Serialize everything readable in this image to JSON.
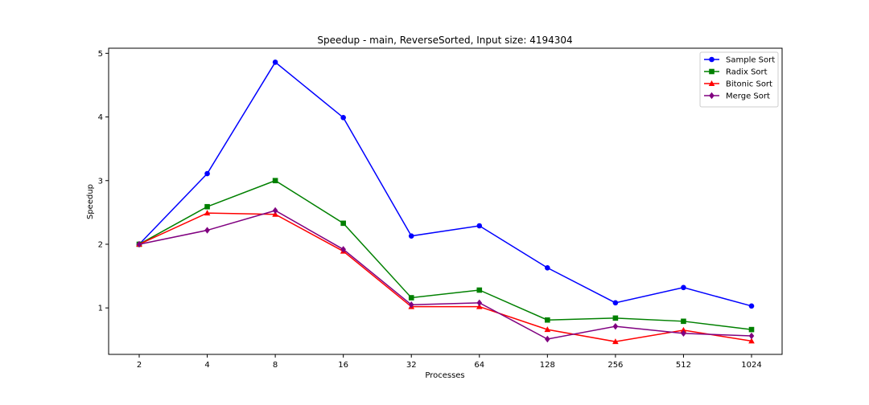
{
  "chart_data": {
    "type": "line",
    "title": "Speedup - main, ReverseSorted, Input size: 4194304",
    "xlabel": "Processes",
    "ylabel": "Speedup",
    "categories": [
      "2",
      "4",
      "8",
      "16",
      "32",
      "64",
      "128",
      "256",
      "512",
      "1024"
    ],
    "ylim": [
      0.27,
      5.08
    ],
    "yticks": [
      1,
      2,
      3,
      4,
      5
    ],
    "grid": false,
    "legend_position": "top-right",
    "series": [
      {
        "name": "Sample Sort",
        "color": "#0000ff",
        "marker": "circle",
        "values": [
          2.0,
          3.11,
          4.86,
          3.99,
          2.13,
          2.29,
          1.63,
          1.08,
          1.32,
          1.03
        ]
      },
      {
        "name": "Radix Sort",
        "color": "#008000",
        "marker": "square",
        "values": [
          2.0,
          2.59,
          3.0,
          2.33,
          1.16,
          1.28,
          0.81,
          0.84,
          0.79,
          0.66
        ]
      },
      {
        "name": "Bitonic Sort",
        "color": "#ff0000",
        "marker": "triangle",
        "values": [
          2.0,
          2.49,
          2.47,
          1.89,
          1.02,
          1.02,
          0.66,
          0.47,
          0.65,
          0.48
        ]
      },
      {
        "name": "Merge Sort",
        "color": "#800080",
        "marker": "diamond",
        "values": [
          2.0,
          2.22,
          2.53,
          1.92,
          1.05,
          1.08,
          0.51,
          0.71,
          0.6,
          0.56
        ]
      }
    ]
  }
}
